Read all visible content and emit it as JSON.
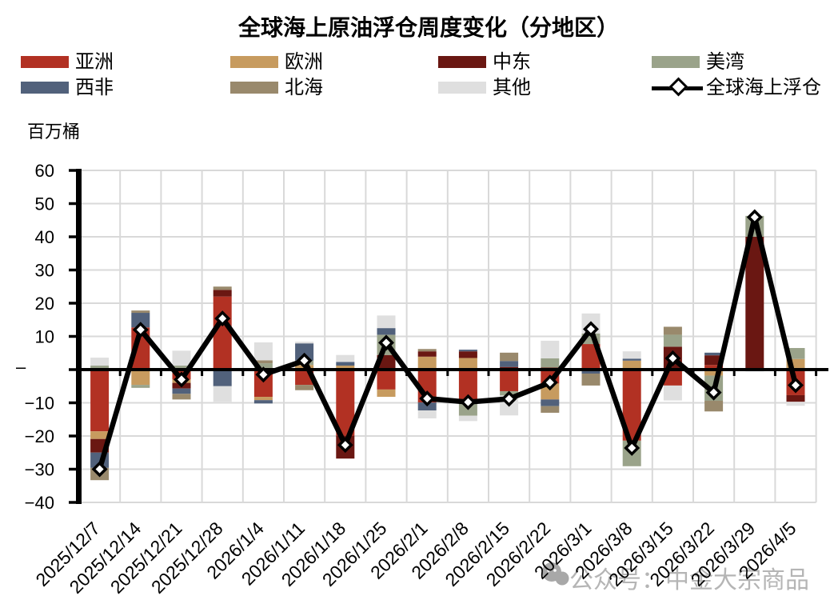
{
  "title": "全球海上原油浮仓周度变化（分地区）",
  "unit_label": "百万桶",
  "watermark": {
    "text": "公众号：中金大宗商品",
    "logo": "wechat-icon"
  },
  "chart_data": {
    "type": "bar",
    "stacked": true,
    "title": "全球海上原油浮仓周度变化（分地区）",
    "ylabel": "百万桶",
    "ylim": [
      -40,
      60
    ],
    "ytick_step": 10,
    "grid": true,
    "legend_position": "top",
    "categories": [
      "2025/12/7",
      "2025/12/14",
      "2025/12/21",
      "2025/12/28",
      "2026/1/4",
      "2026/1/11",
      "2026/1/18",
      "2026/1/25",
      "2026/2/1",
      "2026/2/8",
      "2026/2/15",
      "2026/2/22",
      "2026/3/1",
      "2026/3/8",
      "2026/3/15",
      "2026/3/22",
      "2026/3/29",
      "2026/4/5"
    ],
    "ytick_labels": [
      "60",
      "50",
      "40",
      "30",
      "20",
      "10",
      "–",
      "−10",
      "−20",
      "−30",
      "−40"
    ],
    "series": [
      {
        "name": "亚洲",
        "color": "#b23123",
        "values": [
          -18.6,
          12.7,
          -3.0,
          22.0,
          -8.2,
          -4.6,
          -19.9,
          -6.0,
          -9.9,
          -9.9,
          -6.5,
          -4.2,
          7.7,
          -21.4,
          -4.8,
          1.4,
          0,
          -7.7
        ]
      },
      {
        "name": "欧洲",
        "color": "#c79b5f",
        "values": [
          -2.3,
          -4.6,
          -1.0,
          0,
          -1.0,
          1.4,
          1.2,
          -2.2,
          3.9,
          3.5,
          0,
          -4.8,
          0,
          2.7,
          0,
          -1.8,
          0,
          3.2
        ]
      },
      {
        "name": "中东",
        "color": "#6a1712",
        "values": [
          -4.1,
          0,
          -1.7,
          2.0,
          0,
          0,
          -6.9,
          4.4,
          1.6,
          2.0,
          0.8,
          0.6,
          0,
          0,
          6.9,
          2.9,
          40.0,
          -2.0
        ]
      },
      {
        "name": "美湾",
        "color": "#9aa38a",
        "values": [
          1.2,
          -0.9,
          1.2,
          0,
          1.9,
          1.3,
          0,
          6.1,
          0,
          -4.0,
          -1.3,
          2.8,
          3.2,
          -7.7,
          3.6,
          -7.6,
          6.3,
          3.3
        ]
      },
      {
        "name": "西非",
        "color": "#51617b",
        "values": [
          -4.6,
          4.4,
          -1.6,
          -5.0,
          -1.0,
          5.2,
          1.1,
          2.0,
          -2.4,
          0.5,
          1.8,
          -2.0,
          -1.2,
          0.6,
          0,
          0.8,
          -0.5,
          0
        ]
      },
      {
        "name": "北海",
        "color": "#99896c",
        "values": [
          -3.7,
          0.7,
          -1.7,
          1.0,
          0.9,
          -1.6,
          0,
          0,
          0.7,
          0,
          2.5,
          -2.0,
          -3.6,
          0,
          2.4,
          -3.2,
          0,
          0
        ]
      },
      {
        "name": "其他",
        "color": "#dfdfdf",
        "values": [
          2.4,
          0,
          4.5,
          -4.7,
          5.4,
          0.5,
          2.1,
          3.8,
          -2.4,
          -1.6,
          -6.0,
          5.3,
          6.0,
          2.2,
          -4.5,
          0,
          0,
          -1.2
        ]
      }
    ],
    "line_series": {
      "name": "全球海上浮仓",
      "color": "#000000",
      "values": [
        -30,
        12,
        -3,
        15.4,
        -1.5,
        2.7,
        -22.7,
        8.1,
        -8.7,
        -9.8,
        -8.8,
        -3.9,
        12.2,
        -23.6,
        3.4,
        -6.9,
        45.9,
        -4.7
      ]
    }
  }
}
